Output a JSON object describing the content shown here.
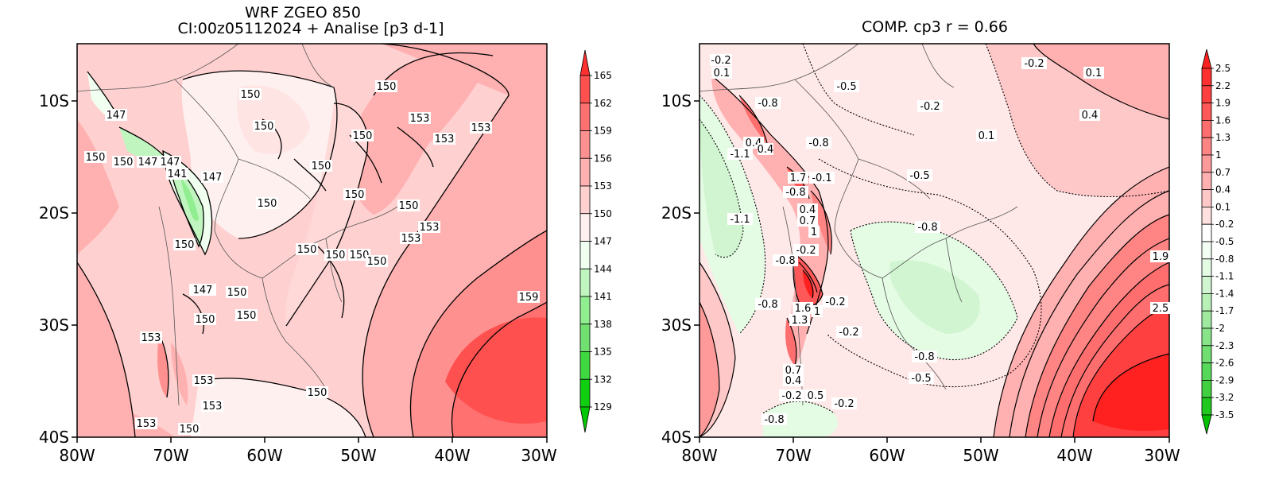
{
  "left_map": {
    "title_line1": "WRF ZGEO 850",
    "title_line2": "CI:00z05112024 + Analise  [p3 d-1]",
    "lat_ticks": [
      "10S",
      "20S",
      "30S",
      "40S"
    ],
    "lon_ticks": [
      "80W",
      "70W",
      "60W",
      "50W",
      "40W",
      "30W"
    ],
    "colorbar": {
      "levels": [
        "165",
        "162",
        "159",
        "156",
        "153",
        "150",
        "147",
        "144",
        "141",
        "138",
        "135",
        "132",
        "129"
      ],
      "colors": [
        "#ff3030",
        "#ff5050",
        "#ff7070",
        "#ff9090",
        "#ffb0b0",
        "#ffd0d0",
        "#fff0f0",
        "#f0fff0",
        "#c0f5c0",
        "#90ee90",
        "#70e070",
        "#40d840",
        "#10ce10",
        "#00c800"
      ]
    },
    "contour_labels": [
      "147",
      "150",
      "150",
      "147",
      "147",
      "141",
      "147",
      "150",
      "150",
      "150",
      "150",
      "153",
      "153",
      "153",
      "150",
      "150",
      "150",
      "150",
      "153",
      "153",
      "150",
      "150",
      "150",
      "150",
      "150",
      "147",
      "150",
      "150",
      "150",
      "153",
      "153",
      "153",
      "153",
      "150",
      "159",
      "150"
    ]
  },
  "right_map": {
    "title": "COMP. cp3  r =  0.66",
    "lat_ticks": [
      "10S",
      "20S",
      "30S",
      "40S"
    ],
    "lon_ticks": [
      "80W",
      "70W",
      "60W",
      "50W",
      "40W",
      "30W"
    ],
    "colorbar": {
      "levels": [
        "2.5",
        "2.2",
        "1.9",
        "1.6",
        "1.3",
        "1",
        "0.7",
        "0.4",
        "0.1",
        "-0.2",
        "-0.5",
        "-0.8",
        "-1.1",
        "-1.4",
        "-1.7",
        "-2",
        "-2.3",
        "-2.6",
        "-2.9",
        "-3.2",
        "-3.5"
      ],
      "colors": [
        "#ff2020",
        "#ff3030",
        "#ff4040",
        "#ff5858",
        "#ff6e6e",
        "#ff8484",
        "#ff9a9a",
        "#ffb0b0",
        "#ffc8c8",
        "#ffe0e0",
        "#ffffff",
        "#f4fff4",
        "#e4fbe4",
        "#d0f5d0",
        "#b8f0b8",
        "#a0eaa0",
        "#88e488",
        "#70de70",
        "#58d858",
        "#40d040",
        "#20c820",
        "#00c000"
      ]
    },
    "contour_labels": [
      "-0.2",
      "0.1",
      "-0.5",
      "-0.2",
      "0.1",
      "-0.8",
      "-0.2",
      "0.4",
      "0.4",
      "-1.1",
      "0.4",
      "-0.8",
      "0.1",
      "-0.5",
      "1.7",
      "-0.1",
      "-0.8",
      "0.4",
      "0.7",
      "-1.1",
      "-0.8",
      "1",
      "-0.2",
      "-0.8",
      "1.9",
      "-0.8",
      "1.6",
      "-0.2",
      "1.3",
      "1",
      "2.5",
      "-0.2",
      "-0.8",
      "0.7",
      "-0.5",
      "0.4",
      "-0.2",
      "0.5",
      "-0.2",
      "-0.8"
    ]
  }
}
